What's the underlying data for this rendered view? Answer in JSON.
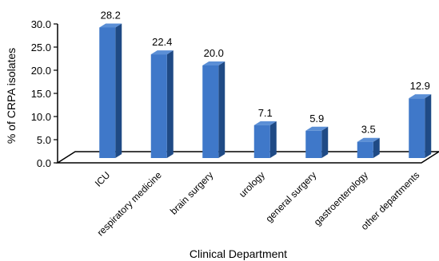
{
  "chart_data": {
    "type": "bar",
    "style": "3d",
    "categories": [
      "ICU",
      "respiratory medicine",
      "brain surgery",
      "urology",
      "general surgery",
      "gastroenterology",
      "other departments"
    ],
    "values": [
      28.2,
      22.4,
      20.0,
      7.1,
      5.9,
      3.5,
      12.9
    ],
    "data_labels": [
      "28.2",
      "22.4",
      "20.0",
      "7.1",
      "5.9",
      "3.5",
      "12.9"
    ],
    "title": "",
    "xlabel": "Clinical Department",
    "ylabel": "% of CRPA isolates",
    "ylim": [
      0,
      30
    ],
    "yticks": [
      "0.0",
      "5.0",
      "10.0",
      "15.0",
      "20.0",
      "25.0",
      "30.0"
    ],
    "grid": false,
    "legend": "none",
    "colors": {
      "bar_front": "#3f78c9",
      "bar_side": "#1f4a85",
      "bar_top": "#5b8fd6",
      "axis": "#000000"
    }
  }
}
